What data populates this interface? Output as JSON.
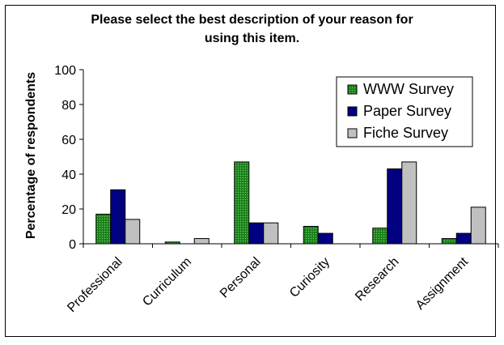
{
  "chart_data": {
    "type": "bar",
    "title_lines": [
      "Please select the best description of your reason for",
      "using this item."
    ],
    "xlabel": "",
    "ylabel": "Percentage of respondents",
    "ylim": [
      0,
      100
    ],
    "yticks": [
      0,
      20,
      40,
      60,
      80,
      100
    ],
    "grid": false,
    "legend_position": "top-right",
    "categories": [
      "Professional",
      "Curriculum",
      "Personal",
      "Curiosity",
      "Research",
      "Assignment"
    ],
    "series": [
      {
        "name": "WWW Survey",
        "color": "#1f8a1f",
        "pattern": "dotted",
        "values": [
          17,
          1,
          47,
          10,
          9,
          3
        ]
      },
      {
        "name": "Paper Survey",
        "color": "#000080",
        "values": [
          31,
          0,
          12,
          6,
          43,
          6
        ]
      },
      {
        "name": "Fiche Survey",
        "color": "#c0c0c0",
        "values": [
          14,
          3,
          12,
          0,
          47,
          21
        ]
      }
    ]
  }
}
